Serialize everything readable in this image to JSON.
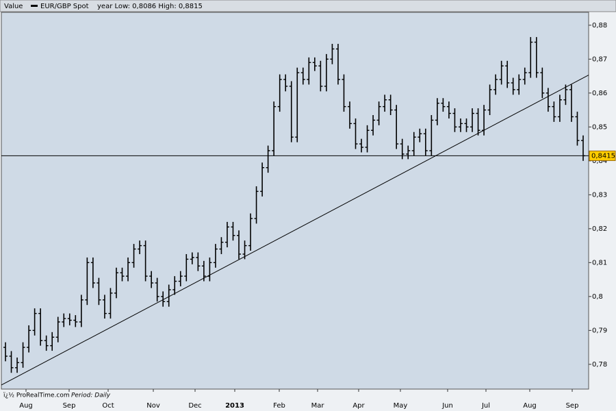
{
  "chart_data": {
    "type": "ohlc",
    "header": {
      "label": "Value",
      "range_text": "year Low: 0,8086 High: 0,8815"
    },
    "footer": {
      "source": "ï¿½ ProRealTime.com",
      "period": "Period: Daily"
    },
    "series": [
      {
        "name": "EUR/GBP Spot",
        "color": "#000000",
        "open": [
          0.785,
          0.7824,
          0.779,
          0.7805,
          0.785,
          0.79,
          0.795,
          0.787,
          0.7855,
          0.788,
          0.7925,
          0.7935,
          0.793,
          0.7925,
          0.799,
          0.81,
          0.804,
          0.799,
          0.795,
          0.801,
          0.807,
          0.806,
          0.81,
          0.814,
          0.815,
          0.806,
          0.804,
          0.8,
          0.7985,
          0.802,
          0.8045,
          0.806,
          0.811,
          0.8115,
          0.809,
          0.806,
          0.81,
          0.814,
          0.816,
          0.8205,
          0.818,
          0.8125,
          0.815,
          0.823,
          0.831,
          0.838,
          0.843,
          0.856,
          0.864,
          0.862,
          0.847,
          0.866,
          0.864,
          0.869,
          0.868,
          0.862,
          0.87,
          0.873,
          0.864,
          0.856,
          0.851,
          0.845,
          0.844,
          0.849,
          0.852,
          0.856,
          0.858,
          0.855,
          0.845,
          0.842,
          0.843,
          0.847,
          0.848,
          0.843,
          0.852,
          0.857,
          0.856,
          0.854,
          0.85,
          0.851,
          0.85,
          0.854,
          0.849,
          0.855,
          0.861,
          0.864,
          0.868,
          0.863,
          0.861,
          0.864,
          0.866,
          0.875,
          0.866,
          0.86,
          0.856,
          0.853,
          0.858,
          0.861,
          0.853,
          0.846
        ],
        "high": [
          0.7865,
          0.7839,
          0.782,
          0.7865,
          0.7915,
          0.7965,
          0.7965,
          0.7885,
          0.7895,
          0.794,
          0.795,
          0.795,
          0.7945,
          0.8005,
          0.8115,
          0.8115,
          0.8055,
          0.8005,
          0.8025,
          0.8085,
          0.8085,
          0.8115,
          0.8155,
          0.8165,
          0.8165,
          0.8075,
          0.8055,
          0.8015,
          0.8035,
          0.806,
          0.8075,
          0.8125,
          0.813,
          0.813,
          0.8105,
          0.8115,
          0.8155,
          0.8175,
          0.822,
          0.822,
          0.8195,
          0.8165,
          0.8245,
          0.8325,
          0.8395,
          0.8445,
          0.8575,
          0.8655,
          0.8655,
          0.8635,
          0.8675,
          0.8675,
          0.8705,
          0.8705,
          0.8695,
          0.8715,
          0.8745,
          0.8745,
          0.8655,
          0.8575,
          0.8525,
          0.8465,
          0.8505,
          0.8535,
          0.8575,
          0.8595,
          0.8595,
          0.8565,
          0.8465,
          0.8445,
          0.8485,
          0.8495,
          0.8495,
          0.8535,
          0.8585,
          0.8585,
          0.8575,
          0.8555,
          0.8525,
          0.8525,
          0.8555,
          0.8555,
          0.8565,
          0.8625,
          0.8655,
          0.8695,
          0.8695,
          0.8645,
          0.8655,
          0.8675,
          0.8765,
          0.8765,
          0.8675,
          0.8615,
          0.8575,
          0.8595,
          0.8625,
          0.8625,
          0.8545,
          0.8475
        ],
        "low": [
          0.7809,
          0.7775,
          0.7775,
          0.779,
          0.7835,
          0.7885,
          0.7855,
          0.784,
          0.784,
          0.7865,
          0.791,
          0.7915,
          0.791,
          0.791,
          0.7975,
          0.8025,
          0.7975,
          0.7935,
          0.7935,
          0.7995,
          0.8045,
          0.8045,
          0.8085,
          0.8125,
          0.8045,
          0.8025,
          0.7985,
          0.797,
          0.797,
          0.8005,
          0.803,
          0.8045,
          0.8095,
          0.8075,
          0.8045,
          0.8045,
          0.8085,
          0.8125,
          0.8145,
          0.8165,
          0.811,
          0.811,
          0.8135,
          0.8215,
          0.8295,
          0.8365,
          0.8415,
          0.8545,
          0.8605,
          0.8455,
          0.8455,
          0.8625,
          0.8625,
          0.8665,
          0.8605,
          0.8605,
          0.8685,
          0.8625,
          0.8545,
          0.8495,
          0.8435,
          0.8425,
          0.8425,
          0.8475,
          0.8505,
          0.8545,
          0.8535,
          0.8435,
          0.8405,
          0.8405,
          0.8415,
          0.8455,
          0.8415,
          0.8415,
          0.8505,
          0.8545,
          0.8525,
          0.8485,
          0.8485,
          0.8485,
          0.8485,
          0.8475,
          0.8475,
          0.8535,
          0.8595,
          0.8625,
          0.8615,
          0.8595,
          0.8595,
          0.8625,
          0.8645,
          0.8645,
          0.8585,
          0.8545,
          0.8515,
          0.8515,
          0.8565,
          0.8515,
          0.8445,
          0.84
        ],
        "close": [
          0.7824,
          0.779,
          0.7805,
          0.785,
          0.79,
          0.795,
          0.787,
          0.7855,
          0.788,
          0.7925,
          0.7935,
          0.793,
          0.7925,
          0.799,
          0.81,
          0.804,
          0.799,
          0.795,
          0.801,
          0.807,
          0.806,
          0.81,
          0.814,
          0.815,
          0.806,
          0.804,
          0.8,
          0.7985,
          0.802,
          0.8045,
          0.806,
          0.811,
          0.8115,
          0.809,
          0.806,
          0.81,
          0.814,
          0.816,
          0.8205,
          0.818,
          0.8125,
          0.815,
          0.823,
          0.831,
          0.838,
          0.843,
          0.856,
          0.864,
          0.862,
          0.847,
          0.866,
          0.864,
          0.869,
          0.868,
          0.862,
          0.87,
          0.873,
          0.864,
          0.856,
          0.851,
          0.845,
          0.844,
          0.849,
          0.852,
          0.856,
          0.858,
          0.855,
          0.845,
          0.842,
          0.843,
          0.847,
          0.848,
          0.843,
          0.852,
          0.857,
          0.856,
          0.854,
          0.85,
          0.851,
          0.85,
          0.854,
          0.849,
          0.855,
          0.861,
          0.864,
          0.868,
          0.863,
          0.861,
          0.864,
          0.866,
          0.875,
          0.866,
          0.86,
          0.856,
          0.853,
          0.858,
          0.861,
          0.853,
          0.846,
          0.8415
        ]
      }
    ],
    "xticks": [
      "Aug",
      "Sep",
      "Oct",
      "Nov",
      "Dec",
      "2013",
      "Feb",
      "Mar",
      "Apr",
      "May",
      "Jun",
      "Jul",
      "Aug",
      "Sep"
    ],
    "ylim": [
      0.7727,
      0.8838
    ],
    "yticks": [
      {
        "value": 0.78,
        "label": "0,78"
      },
      {
        "value": 0.79,
        "label": "0,79"
      },
      {
        "value": 0.8,
        "label": "0,8"
      },
      {
        "value": 0.81,
        "label": "0,81"
      },
      {
        "value": 0.82,
        "label": "0,82"
      },
      {
        "value": 0.83,
        "label": "0,83"
      },
      {
        "value": 0.84,
        "label": "0,84"
      },
      {
        "value": 0.85,
        "label": "0,85"
      },
      {
        "value": 0.86,
        "label": "0,86"
      },
      {
        "value": 0.87,
        "label": "0,87"
      },
      {
        "value": 0.88,
        "label": "0,88"
      }
    ],
    "hline": {
      "value": 0.8415,
      "label": "0,8415",
      "color": "#ffcc00"
    },
    "trendline": [
      0.7739,
      0.8653
    ],
    "plot_color": "#cfdae6"
  }
}
